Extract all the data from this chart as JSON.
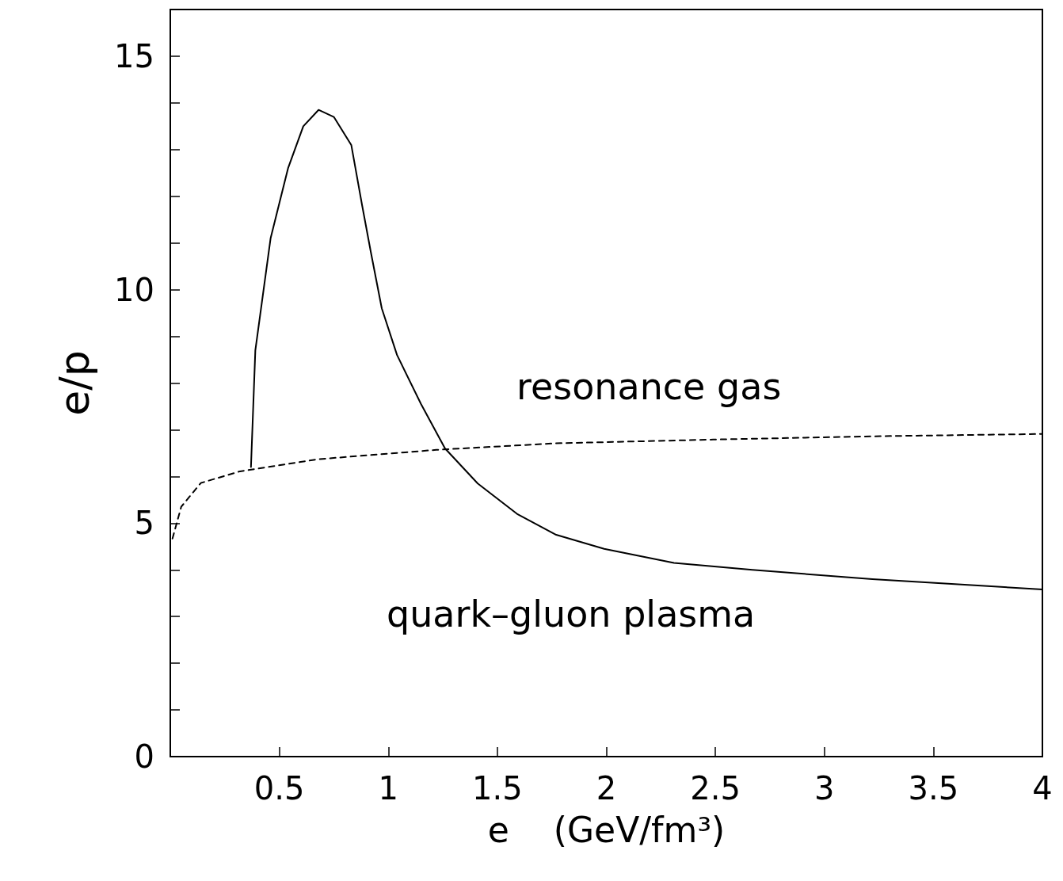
{
  "chart_data": {
    "type": "line",
    "xlabel": "e    (GeV/fm³)",
    "ylabel": "e/p",
    "xlim": [
      0,
      4
    ],
    "ylim": [
      0,
      16
    ],
    "xticks": [
      0.5,
      1,
      1.5,
      2,
      2.5,
      3,
      3.5,
      4
    ],
    "yticks": [
      0,
      {
        "value": 1,
        "label": null
      },
      {
        "value": 2,
        "label": null
      },
      {
        "value": 3,
        "label": null
      },
      {
        "value": 4,
        "label": null
      },
      5,
      {
        "value": 6,
        "label": null
      },
      {
        "value": 7,
        "label": null
      },
      {
        "value": 8,
        "label": null
      },
      {
        "value": 9,
        "label": null
      },
      10,
      {
        "value": 11,
        "label": null
      },
      {
        "value": 12,
        "label": null
      },
      {
        "value": 13,
        "label": null
      },
      {
        "value": 14,
        "label": null
      },
      15
    ],
    "grid": false,
    "marker": "none",
    "series": [
      {
        "color": "#000000",
        "line_style": "solid",
        "x": [
          0.37,
          0.39,
          0.46,
          0.54,
          0.61,
          0.68,
          0.75,
          0.83,
          0.88,
          0.92,
          0.97,
          1.04,
          1.15,
          1.26,
          1.41,
          1.59,
          1.77,
          1.99,
          2.31,
          2.67,
          3.22,
          4.0
        ],
        "values": [
          6.2,
          8.7,
          11.1,
          12.6,
          13.5,
          13.85,
          13.7,
          13.1,
          11.8,
          10.8,
          9.6,
          8.6,
          7.55,
          6.6,
          5.85,
          5.2,
          4.75,
          4.45,
          4.15,
          4.0,
          3.8,
          3.58
        ]
      },
      {
        "color": "#000000",
        "line_style": "dashed",
        "x": [
          0.01,
          0.05,
          0.14,
          0.32,
          0.68,
          1.22,
          1.77,
          2.49,
          3.22,
          4.0
        ],
        "values": [
          4.67,
          5.35,
          5.86,
          6.11,
          6.37,
          6.57,
          6.71,
          6.79,
          6.86,
          6.91
        ]
      }
    ],
    "annotations": [
      "resonance gas",
      "quark–gluon plasma"
    ]
  }
}
